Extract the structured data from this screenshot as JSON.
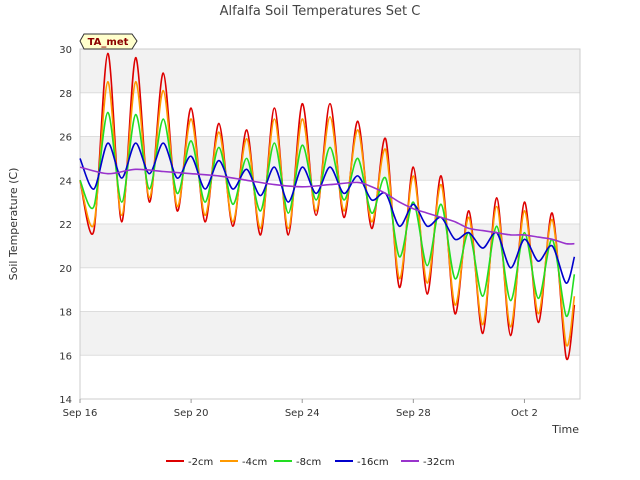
{
  "chart_data": {
    "type": "line",
    "title": "Alfalfa Soil Temperatures Set C",
    "xlabel": "Time",
    "ylabel": "Soil Temperature (C)",
    "badge": "TA_met",
    "ylim": [
      14,
      30
    ],
    "yticks": [
      14,
      16,
      18,
      20,
      22,
      24,
      26,
      28,
      30
    ],
    "x_day_range": [
      16,
      34
    ],
    "xticks": [
      {
        "day": 16,
        "label": "Sep 16"
      },
      {
        "day": 20,
        "label": "Sep 20"
      },
      {
        "day": 24,
        "label": "Sep 24"
      },
      {
        "day": 28,
        "label": "Sep 28"
      },
      {
        "day": 32,
        "label": "Oct 2"
      }
    ],
    "grid": true,
    "legend_position": "bottom",
    "series": [
      {
        "name": "-2cm",
        "color": "#dd0000",
        "days": [
          16.0,
          16.5,
          17.0,
          17.5,
          18.0,
          18.5,
          19.0,
          19.5,
          20.0,
          20.5,
          21.0,
          21.5,
          22.0,
          22.5,
          23.0,
          23.5,
          24.0,
          24.5,
          25.0,
          25.5,
          26.0,
          26.5,
          27.0,
          27.5,
          28.0,
          28.5,
          29.0,
          29.5,
          30.0,
          30.5,
          31.0,
          31.5,
          32.0,
          32.5,
          33.0,
          33.5,
          33.8
        ],
        "values": [
          24.0,
          21.7,
          29.8,
          22.1,
          29.6,
          23.0,
          28.9,
          22.6,
          27.3,
          22.1,
          26.6,
          21.9,
          26.3,
          21.5,
          27.3,
          21.5,
          27.5,
          22.4,
          27.5,
          22.3,
          26.7,
          21.8,
          25.9,
          19.1,
          24.6,
          18.8,
          24.2,
          17.9,
          22.6,
          17.0,
          23.2,
          16.9,
          23.0,
          17.5,
          22.5,
          15.9,
          18.3
        ]
      },
      {
        "name": "-4cm",
        "color": "#ff9900",
        "days": [
          16.0,
          16.5,
          17.0,
          17.5,
          18.0,
          18.5,
          19.0,
          19.5,
          20.0,
          20.5,
          21.0,
          21.5,
          22.0,
          22.5,
          23.0,
          23.5,
          24.0,
          24.5,
          25.0,
          25.5,
          26.0,
          26.5,
          27.0,
          27.5,
          28.0,
          28.5,
          29.0,
          29.5,
          30.0,
          30.5,
          31.0,
          31.5,
          32.0,
          32.5,
          33.0,
          33.5,
          33.8
        ],
        "values": [
          24.0,
          22.0,
          28.5,
          22.4,
          28.5,
          23.2,
          28.1,
          22.8,
          26.8,
          22.4,
          26.2,
          22.1,
          25.9,
          21.8,
          26.8,
          21.8,
          26.8,
          22.6,
          26.9,
          22.6,
          26.3,
          22.1,
          25.4,
          19.5,
          24.2,
          19.3,
          23.8,
          18.3,
          22.3,
          17.4,
          22.8,
          17.3,
          22.6,
          17.9,
          22.2,
          16.5,
          18.7
        ]
      },
      {
        "name": "-8cm",
        "color": "#22dd22",
        "days": [
          16.0,
          16.5,
          17.0,
          17.5,
          18.0,
          18.5,
          19.0,
          19.5,
          20.0,
          20.5,
          21.0,
          21.5,
          22.0,
          22.5,
          23.0,
          23.5,
          24.0,
          24.5,
          25.0,
          25.5,
          26.0,
          26.5,
          27.0,
          27.5,
          28.0,
          28.5,
          29.0,
          29.5,
          30.0,
          30.5,
          31.0,
          31.5,
          32.0,
          32.5,
          33.0,
          33.5,
          33.8
        ],
        "values": [
          24.0,
          22.8,
          27.1,
          23.0,
          27.0,
          23.6,
          26.8,
          23.4,
          25.8,
          23.0,
          25.5,
          22.9,
          25.0,
          22.6,
          25.7,
          22.5,
          25.6,
          23.1,
          25.5,
          23.1,
          25.0,
          22.5,
          24.1,
          20.5,
          23.0,
          20.1,
          22.9,
          19.5,
          21.6,
          18.7,
          21.9,
          18.5,
          21.6,
          18.6,
          21.3,
          17.8,
          19.7
        ]
      },
      {
        "name": "-16cm",
        "color": "#0000cc",
        "days": [
          16.0,
          16.5,
          17.0,
          17.5,
          18.0,
          18.5,
          19.0,
          19.5,
          20.0,
          20.5,
          21.0,
          21.5,
          22.0,
          22.5,
          23.0,
          23.5,
          24.0,
          24.5,
          25.0,
          25.5,
          26.0,
          26.5,
          27.0,
          27.5,
          28.0,
          28.5,
          29.0,
          29.5,
          30.0,
          30.5,
          31.0,
          31.5,
          32.0,
          32.5,
          33.0,
          33.5,
          33.8
        ],
        "values": [
          25.0,
          23.6,
          25.7,
          24.1,
          25.7,
          24.3,
          25.7,
          24.1,
          25.1,
          23.6,
          24.9,
          23.6,
          24.5,
          23.3,
          24.6,
          23.0,
          24.6,
          23.4,
          24.6,
          23.4,
          24.2,
          23.1,
          23.4,
          21.9,
          22.9,
          21.9,
          22.3,
          21.3,
          21.6,
          20.9,
          21.6,
          20.0,
          21.3,
          20.3,
          21.0,
          19.3,
          20.5
        ]
      },
      {
        "name": "-32cm",
        "color": "#9933cc",
        "days": [
          16.0,
          17.0,
          18.0,
          19.0,
          20.0,
          21.0,
          22.0,
          23.0,
          24.0,
          25.0,
          26.0,
          26.5,
          27.0,
          27.5,
          28.0,
          28.5,
          29.0,
          29.5,
          30.0,
          30.5,
          31.0,
          31.5,
          32.0,
          32.5,
          33.0,
          33.5,
          33.8
        ],
        "values": [
          24.6,
          24.3,
          24.5,
          24.4,
          24.3,
          24.2,
          24.0,
          23.8,
          23.7,
          23.8,
          23.9,
          23.7,
          23.4,
          23.0,
          22.7,
          22.5,
          22.3,
          22.1,
          21.8,
          21.7,
          21.6,
          21.5,
          21.5,
          21.4,
          21.3,
          21.1,
          21.1
        ]
      }
    ]
  }
}
